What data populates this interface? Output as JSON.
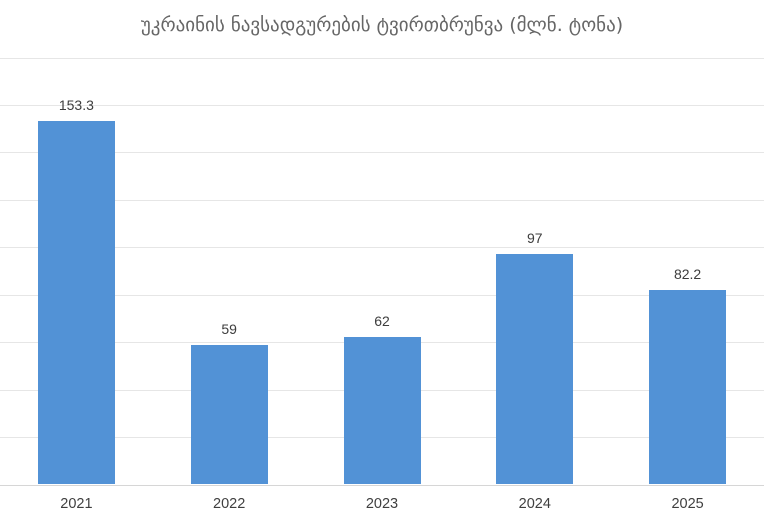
{
  "chart_data": {
    "type": "bar",
    "title": "უკრაინის ნავსადგურების ტვირთბრუნვა (მლნ. ტონა)",
    "categories": [
      "2021",
      "2022",
      "2023",
      "2024",
      "2025"
    ],
    "values": [
      153.3,
      59,
      62,
      97,
      82.2
    ],
    "value_labels": [
      "153.3",
      "59",
      "62",
      "97",
      "82.2"
    ],
    "xlabel": "",
    "ylabel": "",
    "ylim": [
      0,
      180
    ],
    "grid_step": 20,
    "grid": true,
    "legend": false,
    "bar_color": "#5292d6",
    "value_label_color": "#3d3d3d",
    "axis_label_color": "#3f3f3f",
    "title_color": "#666666",
    "gridline_color": "#e6e6e6",
    "axis_line_color": "#d6d6d6",
    "background_color": "#ffffff"
  }
}
